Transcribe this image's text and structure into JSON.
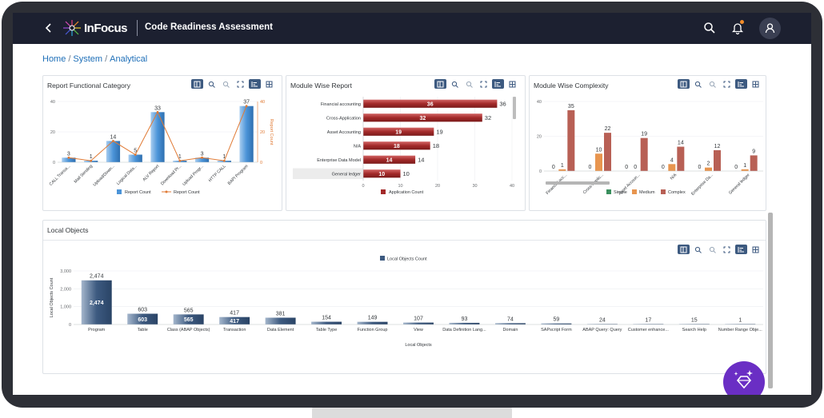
{
  "header": {
    "brand": "InFocus",
    "app_title": "Code Readiness Assessment"
  },
  "breadcrumb": [
    "Home",
    "System",
    "Analytical"
  ],
  "panels": {
    "functional_title": "Report Functional Category",
    "module_title": "Module Wise Report",
    "complexity_title": "Module Wise Complexity",
    "local_title": "Local Objects"
  },
  "colors": {
    "topbar": "#1c2030",
    "accent_blue": "#4b94d8",
    "line_orange": "#e07a35",
    "bar_red": "#a32a2a",
    "simple_green": "#3a8f5e",
    "medium_orange": "#e8954f",
    "complex_brown": "#b86055",
    "local_bar": "#3d5a80",
    "fab": "#6a2ec4"
  },
  "chart_data": [
    {
      "id": "functional",
      "type": "bar",
      "title": "Report Functional Category",
      "categories": [
        "CALL Transa...",
        "Mail Sending",
        "Upload/Down...",
        "Logical Data...",
        "ALV Report",
        "Download Pr...",
        "Upload Progr...",
        "HTTP CALL",
        "BAPI Program"
      ],
      "series": [
        {
          "name": "Report Count",
          "kind": "bar",
          "values": [
            3,
            1,
            14,
            5,
            33,
            1,
            3,
            1,
            37
          ]
        },
        {
          "name": "Report Count",
          "kind": "line",
          "values": [
            3,
            1,
            14,
            5,
            33,
            1,
            3,
            1,
            37
          ]
        }
      ],
      "data_labels": [
        "3",
        "1",
        "14",
        "5",
        "33",
        "1",
        "3",
        "1",
        "37"
      ],
      "y_ticks": [
        "40",
        "20",
        "0"
      ],
      "y2_ticks": [
        "40",
        "20",
        "0"
      ],
      "y2label": "Report Count",
      "ylim": [
        0,
        40
      ],
      "legend": [
        "Report Count",
        "Report Count"
      ],
      "legend_position": "bottom"
    },
    {
      "id": "module",
      "type": "bar",
      "orientation": "horizontal",
      "title": "Module Wise Report",
      "categories": [
        "Financial accounting",
        "Cross-Application",
        "Asset Accounting",
        "N/A",
        "Enterprise Data Model",
        "General ledger"
      ],
      "series": [
        {
          "name": "Application Count",
          "values": [
            36,
            32,
            19,
            18,
            14,
            10
          ]
        }
      ],
      "inside_labels": [
        "36",
        "32",
        "19",
        "18",
        "14",
        "10"
      ],
      "outside_labels": [
        "36",
        "32",
        "19",
        "18",
        "14",
        "10"
      ],
      "x_ticks": [
        "0",
        "10",
        "20",
        "30",
        "40"
      ],
      "xlim": [
        0,
        40
      ],
      "legend": [
        "Application Count"
      ],
      "legend_position": "bottom"
    },
    {
      "id": "complexity",
      "type": "bar",
      "title": "Module Wise Complexity",
      "categories": [
        "Financial acc...",
        "Cross-Applic...",
        "Asset Accoun...",
        "N/A",
        "Enterprise Da...",
        "General ledger"
      ],
      "series": [
        {
          "name": "Simple",
          "values": [
            0,
            0,
            0,
            0,
            0,
            0
          ]
        },
        {
          "name": "Medium",
          "values": [
            1,
            10,
            0,
            4,
            2,
            1
          ]
        },
        {
          "name": "Complex",
          "values": [
            35,
            22,
            19,
            14,
            12,
            9
          ]
        }
      ],
      "value_labels": [
        [
          "0",
          "1",
          "35"
        ],
        [
          "0",
          "10",
          "22"
        ],
        [
          "0",
          "0",
          "19"
        ],
        [
          "0",
          "4",
          "14"
        ],
        [
          "0",
          "2",
          "12"
        ],
        [
          "0",
          "1",
          "9"
        ]
      ],
      "y_ticks": [
        "40",
        "20",
        "0"
      ],
      "ylim": [
        0,
        40
      ],
      "legend": [
        "Simple",
        "Medium",
        "Complex"
      ],
      "legend_position": "bottom"
    },
    {
      "id": "local",
      "type": "bar",
      "title": "Local Objects",
      "categories": [
        "Program",
        "Table",
        "Class (ABAP Objects)",
        "Transaction",
        "Data Element",
        "Table Type",
        "Function Group",
        "View",
        "Data Definition Lang...",
        "Domain",
        "SAPscript Form",
        "ABAP Query: Query",
        "Customer enhance...",
        "Search Help",
        "Number Range Obje..."
      ],
      "series": [
        {
          "name": "Local Objects Count",
          "values": [
            2474,
            603,
            565,
            417,
            381,
            154,
            149,
            107,
            93,
            74,
            59,
            24,
            17,
            15,
            1
          ]
        }
      ],
      "top_labels": [
        "2,474",
        "603",
        "565",
        "417",
        "381",
        "154",
        "149",
        "107",
        "93",
        "74",
        "59",
        "24",
        "17",
        "15",
        "1"
      ],
      "inside_labels": [
        "2,474",
        "603",
        "565",
        "417"
      ],
      "y_ticks": [
        "3,000",
        "2,000",
        "1,000",
        "0"
      ],
      "ylim": [
        0,
        3000
      ],
      "xlabel": "Local Objects",
      "ylabel": "Local Objects Count",
      "legend": [
        "Local Objects Count"
      ],
      "legend_position": "top"
    }
  ]
}
